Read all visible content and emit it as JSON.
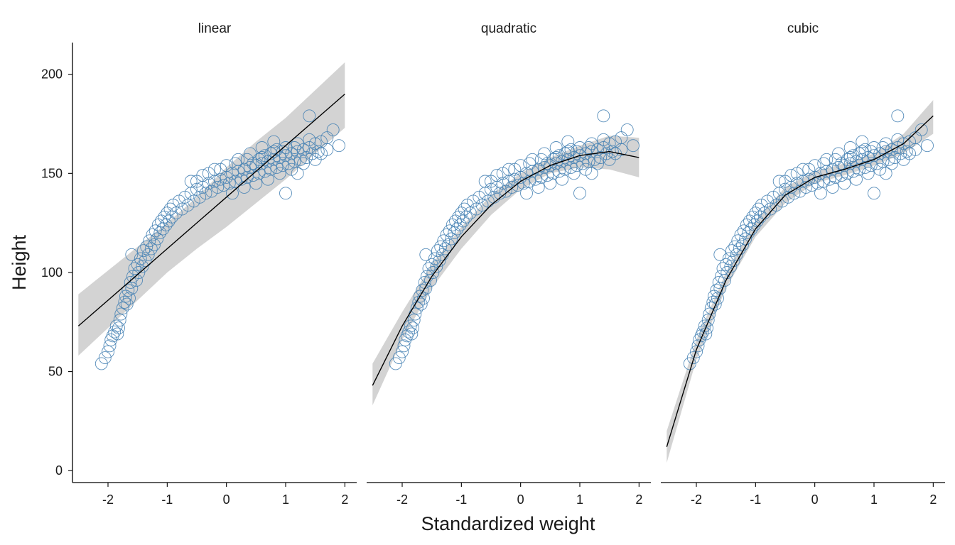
{
  "chart_data": {
    "type": "scatter",
    "xlabel": "Standardized weight",
    "ylabel": "Height",
    "xlim": [
      -2.6,
      2.2
    ],
    "ylim": [
      -6,
      216
    ],
    "x_ticks": [
      -2,
      -1,
      0,
      1,
      2
    ],
    "y_ticks": [
      0,
      50,
      100,
      150,
      200
    ],
    "colors": {
      "points": "#4682b4",
      "fit_line": "#000000",
      "band": "#d3d3d3",
      "axis": "#000000"
    },
    "observations": [
      [
        -2.11,
        54
      ],
      [
        -2.05,
        57
      ],
      [
        -2.0,
        60
      ],
      [
        -1.97,
        63
      ],
      [
        -1.95,
        66
      ],
      [
        -1.92,
        68
      ],
      [
        -1.89,
        70
      ],
      [
        -1.86,
        73
      ],
      [
        -1.84,
        69
      ],
      [
        -1.82,
        72
      ],
      [
        -1.8,
        76
      ],
      [
        -1.78,
        79
      ],
      [
        -1.75,
        82
      ],
      [
        -1.72,
        85
      ],
      [
        -1.7,
        88
      ],
      [
        -1.68,
        84
      ],
      [
        -1.66,
        91
      ],
      [
        -1.64,
        87
      ],
      [
        -1.62,
        95
      ],
      [
        -1.6,
        92
      ],
      [
        -1.58,
        98
      ],
      [
        -1.55,
        102
      ],
      [
        -1.52,
        96
      ],
      [
        -1.5,
        104
      ],
      [
        -1.6,
        109
      ],
      [
        -1.48,
        100
      ],
      [
        -1.45,
        107
      ],
      [
        -1.42,
        103
      ],
      [
        -1.4,
        111
      ],
      [
        -1.37,
        106
      ],
      [
        -1.35,
        113
      ],
      [
        -1.32,
        109
      ],
      [
        -1.3,
        116
      ],
      [
        -1.27,
        112
      ],
      [
        -1.25,
        119
      ],
      [
        -1.22,
        114
      ],
      [
        -1.2,
        121
      ],
      [
        -1.17,
        117
      ],
      [
        -1.15,
        124
      ],
      [
        -1.12,
        120
      ],
      [
        -1.1,
        126
      ],
      [
        -1.07,
        122
      ],
      [
        -1.05,
        128
      ],
      [
        -1.02,
        124
      ],
      [
        -1.0,
        130
      ],
      [
        -0.97,
        126
      ],
      [
        -0.95,
        132
      ],
      [
        -0.92,
        128
      ],
      [
        -0.9,
        134
      ],
      [
        -0.85,
        130
      ],
      [
        -0.8,
        136
      ],
      [
        -0.75,
        132
      ],
      [
        -0.7,
        138
      ],
      [
        -0.65,
        134
      ],
      [
        -0.6,
        140
      ],
      [
        -0.55,
        136
      ],
      [
        -0.5,
        142
      ],
      [
        -0.45,
        138
      ],
      [
        -0.4,
        143
      ],
      [
        -0.35,
        140
      ],
      [
        -0.3,
        145
      ],
      [
        -0.25,
        141
      ],
      [
        -0.2,
        146
      ],
      [
        -0.15,
        143
      ],
      [
        -0.1,
        147
      ],
      [
        -0.05,
        144
      ],
      [
        0.0,
        148
      ],
      [
        0.05,
        145
      ],
      [
        0.1,
        150
      ],
      [
        0.15,
        146
      ],
      [
        0.2,
        151
      ],
      [
        0.25,
        147
      ],
      [
        0.3,
        152
      ],
      [
        0.35,
        148
      ],
      [
        0.4,
        153
      ],
      [
        0.45,
        149
      ],
      [
        0.5,
        154
      ],
      [
        0.55,
        150
      ],
      [
        0.6,
        155
      ],
      [
        0.65,
        151
      ],
      [
        0.7,
        156
      ],
      [
        0.75,
        152
      ],
      [
        0.8,
        157
      ],
      [
        0.85,
        153
      ],
      [
        0.9,
        158
      ],
      [
        0.95,
        154
      ],
      [
        1.0,
        159
      ],
      [
        1.05,
        155
      ],
      [
        1.1,
        160
      ],
      [
        1.15,
        156
      ],
      [
        1.2,
        161
      ],
      [
        1.25,
        157
      ],
      [
        1.3,
        162
      ],
      [
        1.35,
        158
      ],
      [
        1.4,
        163
      ],
      [
        1.45,
        160
      ],
      [
        1.5,
        165
      ],
      [
        1.55,
        161
      ],
      [
        1.6,
        166
      ],
      [
        1.7,
        168
      ],
      [
        1.8,
        172
      ],
      [
        1.9,
        164
      ],
      [
        1.4,
        179
      ],
      [
        1.0,
        140
      ],
      [
        1.2,
        150
      ],
      [
        1.6,
        160
      ],
      [
        0.4,
        160
      ],
      [
        0.6,
        163
      ],
      [
        0.8,
        166
      ],
      [
        0.2,
        157
      ],
      [
        0.0,
        154
      ],
      [
        -0.2,
        152
      ],
      [
        -0.4,
        149
      ],
      [
        -0.6,
        146
      ],
      [
        0.1,
        140
      ],
      [
        0.3,
        143
      ],
      [
        0.5,
        145
      ],
      [
        0.7,
        147
      ],
      [
        0.9,
        150
      ],
      [
        1.1,
        152
      ],
      [
        1.3,
        155
      ],
      [
        1.5,
        157
      ],
      [
        1.7,
        162
      ],
      [
        0.6,
        158
      ],
      [
        0.8,
        161
      ],
      [
        1.0,
        163
      ],
      [
        1.2,
        165
      ],
      [
        1.4,
        167
      ],
      [
        0.45,
        155
      ],
      [
        0.65,
        159
      ],
      [
        0.85,
        162
      ],
      [
        -0.1,
        152
      ],
      [
        0.15,
        155
      ],
      [
        0.35,
        157
      ],
      [
        0.55,
        157
      ],
      [
        0.75,
        160
      ],
      [
        0.95,
        161
      ],
      [
        1.15,
        163
      ],
      [
        -0.3,
        150
      ],
      [
        -0.5,
        146
      ]
    ],
    "panels": [
      {
        "name": "linear",
        "x": [
          -2.5,
          -2.0,
          -1.5,
          -1.0,
          -0.5,
          0.0,
          0.5,
          1.0,
          1.5,
          2.0
        ],
        "mean": [
          73,
          86,
          99,
          112,
          125,
          138,
          151,
          164,
          177,
          190
        ],
        "lower": [
          58,
          72,
          86,
          100,
          112,
          123,
          135,
          147,
          160,
          173
        ],
        "upper": [
          89,
          101,
          113,
          125,
          138,
          153,
          166,
          178,
          192,
          206
        ]
      },
      {
        "name": "quadratic",
        "x": [
          -2.5,
          -2.0,
          -1.5,
          -1.0,
          -0.5,
          0.0,
          0.5,
          1.0,
          1.5,
          2.0
        ],
        "mean": [
          43,
          73,
          98,
          118,
          134,
          146,
          154,
          159,
          161,
          158
        ],
        "lower": [
          33,
          66,
          92,
          112,
          129,
          142,
          150,
          153,
          152,
          148
        ],
        "upper": [
          54,
          80,
          104,
          123,
          139,
          150,
          158,
          164,
          169,
          168
        ]
      },
      {
        "name": "cubic",
        "x": [
          -2.5,
          -2.0,
          -1.5,
          -1.0,
          -0.5,
          0.0,
          0.5,
          1.0,
          1.5,
          2.0
        ],
        "mean": [
          12,
          61,
          96,
          122,
          139,
          148,
          152,
          157,
          165,
          179
        ],
        "lower": [
          4,
          56,
          92,
          118,
          135,
          145,
          149,
          154,
          160,
          170
        ],
        "upper": [
          20,
          66,
          100,
          126,
          143,
          151,
          155,
          160,
          170,
          187
        ]
      }
    ]
  }
}
